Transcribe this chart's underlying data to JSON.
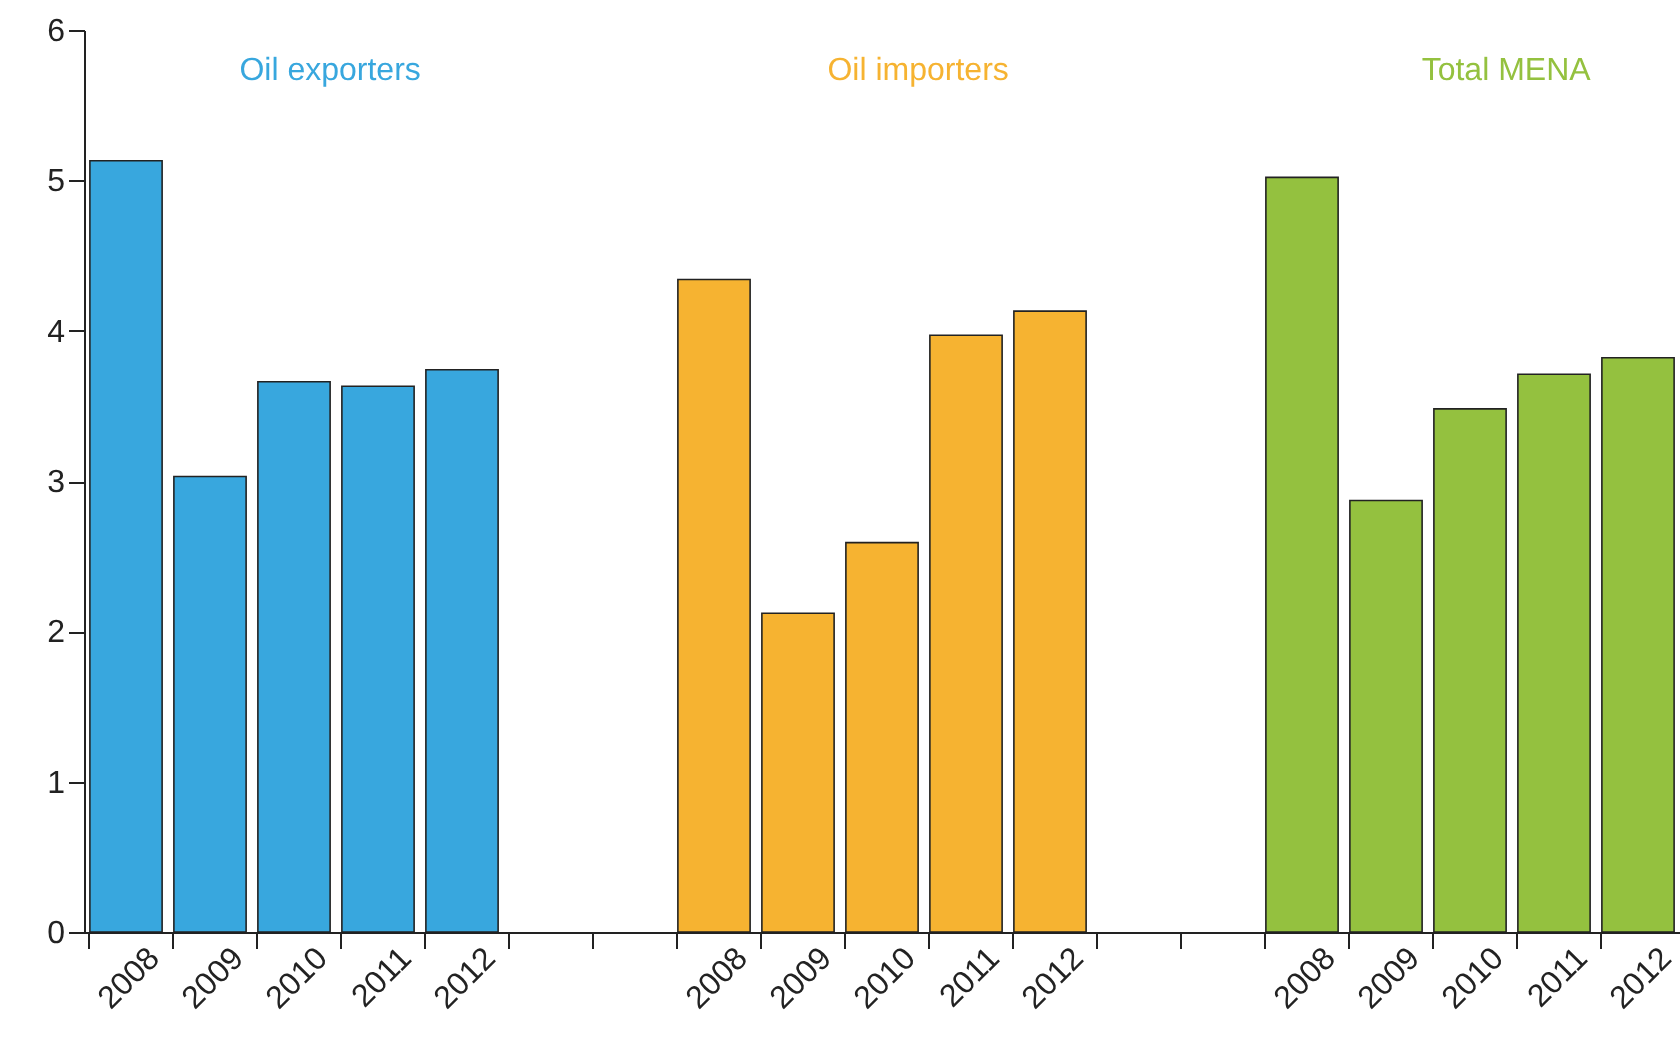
{
  "chart_data": {
    "type": "bar",
    "categories": [
      "2008",
      "2009",
      "2010",
      "2011",
      "2012",
      null,
      null,
      "2008",
      "2009",
      "2010",
      "2011",
      "2012",
      null,
      null,
      "2008",
      "2009",
      "2010",
      "2011",
      "2012"
    ],
    "series": [
      {
        "name": "Oil exporters",
        "color": "#38a7de",
        "values": [
          5.13,
          3.03,
          3.66,
          3.63,
          3.74,
          null,
          null,
          null,
          null,
          null,
          null,
          null,
          null,
          null,
          null,
          null,
          null,
          null,
          null
        ]
      },
      {
        "name": "Oil importers",
        "color": "#f6b331",
        "values": [
          null,
          null,
          null,
          null,
          null,
          null,
          null,
          4.34,
          2.12,
          2.59,
          3.97,
          4.13,
          null,
          null,
          null,
          null,
          null,
          null,
          null
        ]
      },
      {
        "name": "Total MENA",
        "color": "#94c13f",
        "values": [
          null,
          null,
          null,
          null,
          null,
          null,
          null,
          null,
          null,
          null,
          null,
          null,
          null,
          null,
          5.02,
          2.87,
          3.48,
          3.71,
          3.82
        ]
      }
    ],
    "ylim": [
      0,
      6
    ],
    "yticks": [
      0,
      1,
      2,
      3,
      4,
      5,
      6
    ],
    "grid": false
  }
}
